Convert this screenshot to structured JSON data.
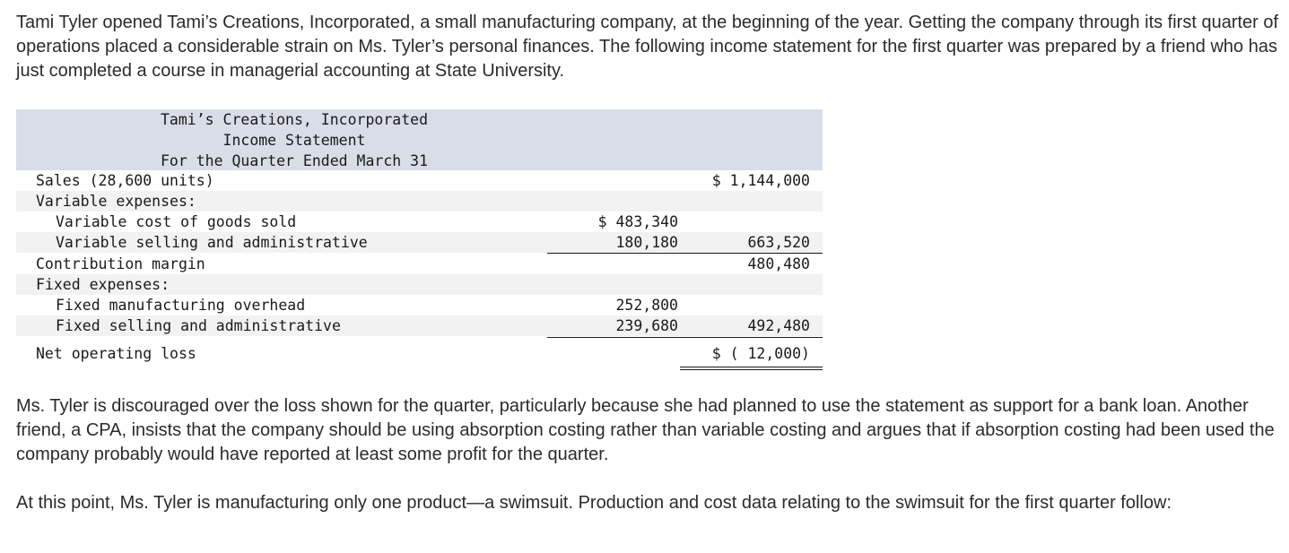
{
  "intro": "Tami Tyler opened Tami’s Creations, Incorporated, a small manufacturing company, at the beginning of the year. Getting the company through its first quarter of operations placed a considerable strain on Ms. Tyler’s personal finances. The following income statement for the first quarter was prepared by a friend who has just completed a course in managerial accounting at State University.",
  "statement": {
    "company": "Tami’s Creations, Incorporated",
    "title": "Income Statement",
    "period": "For the Quarter Ended March 31",
    "rows": [
      {
        "label": "Sales (28,600 units)",
        "col1": "",
        "col2": "$ 1,144,000"
      },
      {
        "label": "Variable expenses:",
        "col1": "",
        "col2": ""
      },
      {
        "label": "Variable cost of goods sold",
        "col1": "$ 483,340",
        "col2": ""
      },
      {
        "label": "Variable selling and administrative",
        "col1": "180,180",
        "col2": "663,520"
      },
      {
        "label": "Contribution margin",
        "col1": "",
        "col2": "480,480"
      },
      {
        "label": "Fixed expenses:",
        "col1": "",
        "col2": ""
      },
      {
        "label": "Fixed manufacturing overhead",
        "col1": "252,800",
        "col2": ""
      },
      {
        "label": "Fixed selling and administrative",
        "col1": "239,680",
        "col2": "492,480"
      },
      {
        "label": "Net operating loss",
        "col1": "",
        "col2": "$ ( 12,000)"
      }
    ]
  },
  "para2": "Ms. Tyler is discouraged over the loss shown for the quarter, particularly because she had planned to use the statement as support for a bank loan. Another friend, a CPA, insists that the company should be using absorption costing rather than variable costing and argues that if absorption costing had been used the company probably would have reported at least some profit for the quarter.",
  "para3": "At this point, Ms. Tyler is manufacturing only one product—a swimsuit. Production and cost data relating to the swimsuit for the first quarter follow:"
}
